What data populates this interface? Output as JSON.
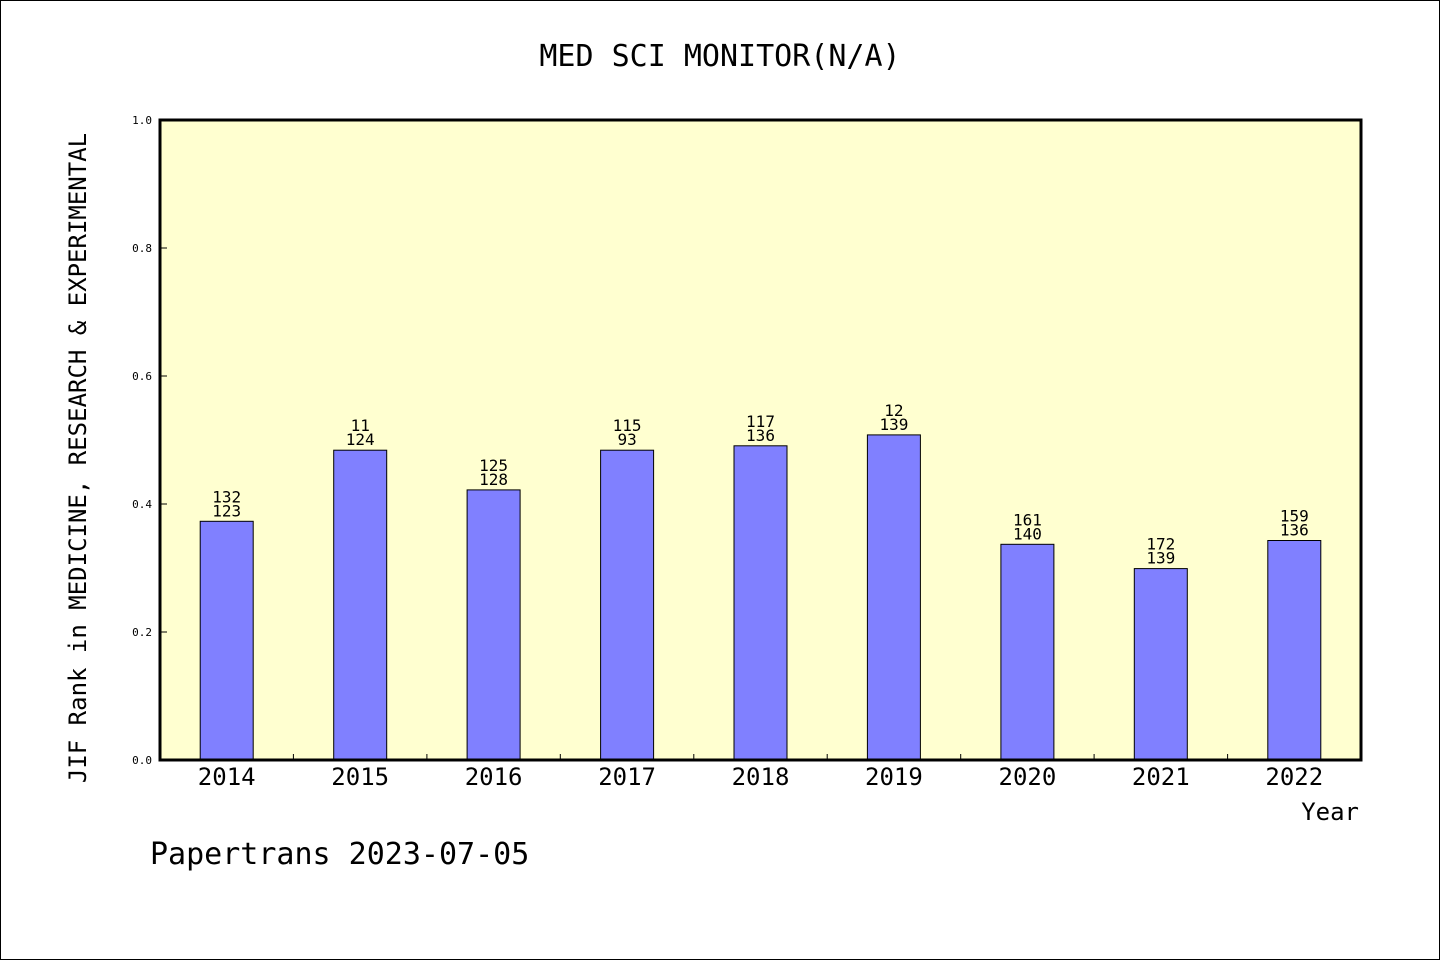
{
  "chart_data": {
    "type": "bar",
    "title": "MED SCI MONITOR(N/A)",
    "xlabel": "Year",
    "ylabel": "JIF Rank in MEDICINE, RESEARCH & EXPERIMENTAL",
    "ylim": [
      0,
      1.0
    ],
    "yticks": [
      "0.0",
      "0.2",
      "0.4",
      "0.6",
      "0.8",
      "1.0"
    ],
    "categories": [
      "2014",
      "2015",
      "2016",
      "2017",
      "2018",
      "2019",
      "2020",
      "2021",
      "2022"
    ],
    "values": [
      0.373,
      0.484,
      0.422,
      0.484,
      0.491,
      0.508,
      0.337,
      0.299,
      0.343
    ],
    "labels_top": [
      "132",
      "11",
      "125",
      "115",
      "117",
      "12",
      "161",
      "172",
      "159"
    ],
    "labels_bottom": [
      "123",
      "124",
      "128",
      "93",
      "136",
      "139",
      "140",
      "139",
      "136"
    ],
    "grid": false,
    "legend": "none"
  },
  "colors": {
    "plot_background": "#ffffd0",
    "bar_fill": "#8080ff",
    "bar_stroke": "#000000",
    "axis": "#000000"
  },
  "footer": "Papertrans 2023-07-05"
}
